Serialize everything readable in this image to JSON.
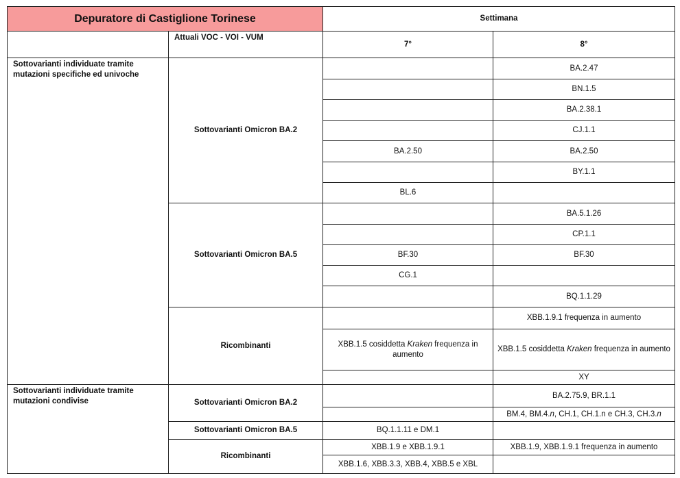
{
  "header": {
    "title": "Depuratore di Castiglione Torinese",
    "week_label": "Settimana",
    "voc_label": "Attuali VOC - VOI - VUM",
    "week_7": "7°",
    "week_8": "8°"
  },
  "groups": [
    {
      "label": "Sottovarianti individuate tramite mutazioni specifiche ed univoche",
      "subgroups": [
        {
          "label": "Sottovarianti Omicron BA.2",
          "rows": [
            [
              "",
              "BA.2.47"
            ],
            [
              "",
              "BN.1.5"
            ],
            [
              "",
              "BA.2.38.1"
            ],
            [
              "",
              "CJ.1.1"
            ],
            [
              "BA.2.50",
              "BA.2.50"
            ],
            [
              "",
              "BY.1.1"
            ],
            [
              "BL.6",
              ""
            ]
          ]
        },
        {
          "label": "Sottovarianti Omicron BA.5",
          "rows": [
            [
              "",
              "BA.5.1.26"
            ],
            [
              "",
              "CP.1.1"
            ],
            [
              "BF.30",
              "BF.30"
            ],
            [
              "CG.1",
              ""
            ],
            [
              "",
              "BQ.1.1.29"
            ]
          ]
        },
        {
          "label": "Ricombinanti",
          "rows": [
            [
              "",
              "XBB.1.9.1 frequenza in aumento"
            ],
            [
              "XBB.1.5 cosiddetta <i>Kraken</i> frequenza in aumento",
              "XBB.1.5 cosiddetta <i>Kraken</i> frequenza in aumento"
            ],
            [
              "",
              "XY"
            ]
          ]
        }
      ]
    },
    {
      "label": "Sottovarianti individuate tramite mutazioni condivise",
      "subgroups": [
        {
          "label": "Sottovarianti Omicron BA.2",
          "rows": [
            [
              "",
              "BA.2.75.9, BR.1.1"
            ],
            [
              "",
              "BM.4, BM.4.<i>n</i>, CH.1, CH.1.n e CH.3, CH.3.<i>n</i>"
            ]
          ]
        },
        {
          "label": "Sottovarianti Omicron BA.5",
          "rows": [
            [
              "BQ.1.1.11 e DM.1",
              ""
            ]
          ]
        },
        {
          "label": "Ricombinanti",
          "rows": [
            [
              "XBB.1.9 e XBB.1.9.1",
              "XBB.1.9, XBB.1.9.1 frequenza in aumento"
            ],
            [
              "XBB.1.6, XBB.3.3, XBB.4, XBB.5 e XBL",
              ""
            ]
          ]
        }
      ]
    }
  ]
}
